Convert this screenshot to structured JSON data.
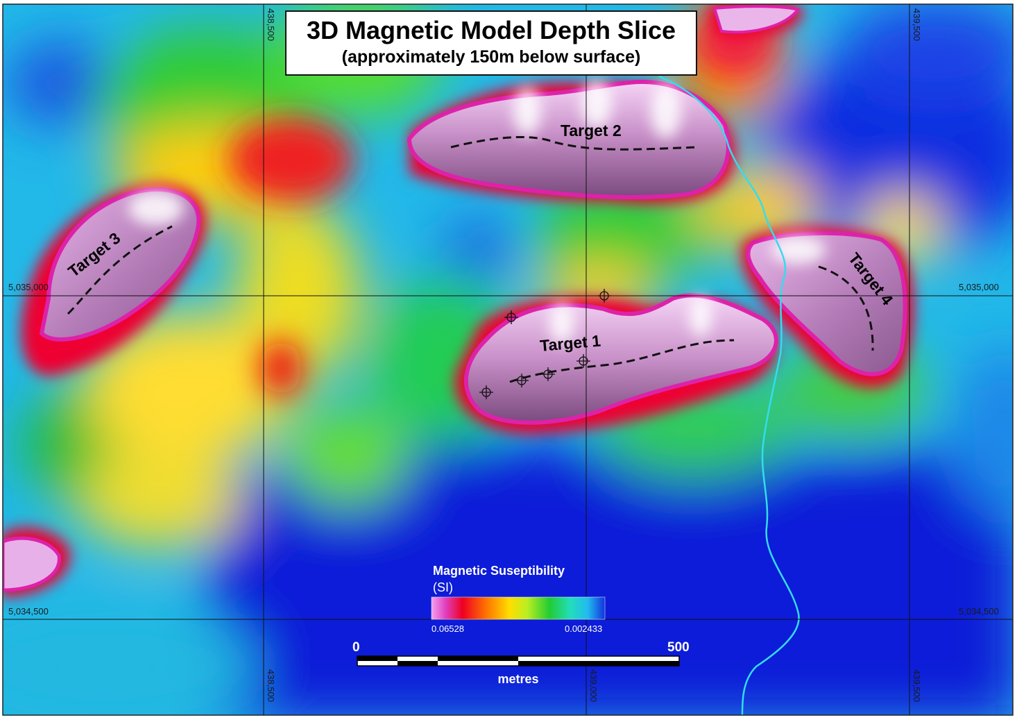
{
  "title": {
    "main": "3D Magnetic Model Depth Slice",
    "sub": "(approximately 150m below surface)"
  },
  "targets": [
    {
      "name": "Target 1"
    },
    {
      "name": "Target 2"
    },
    {
      "name": "Target 3"
    },
    {
      "name": "Target 4"
    }
  ],
  "grid": {
    "easting_labels": [
      "438,500",
      "439,000",
      "439,500"
    ],
    "northing_labels": [
      "5,035,000",
      "5,034,500"
    ]
  },
  "legend": {
    "title": "Magnetic Suseptibility",
    "unit": "(SI)",
    "max_label": "0.06528",
    "min_label": "0.002433",
    "colors": [
      "#ee88ee",
      "#dd33aa",
      "#ee0033",
      "#ff6600",
      "#ffcc00",
      "#ffff33",
      "#aaee22",
      "#22dd33",
      "#22ddaa",
      "#22ccee",
      "#2277ee",
      "#1133dd"
    ]
  },
  "scale_bar": {
    "start_label": "0",
    "end_label": "500",
    "unit": "metres"
  },
  "colors": {
    "high": "#f0a0ee",
    "mid": "#ffcc00",
    "low": "#0a1fd8",
    "drainage": "#33ddee"
  }
}
